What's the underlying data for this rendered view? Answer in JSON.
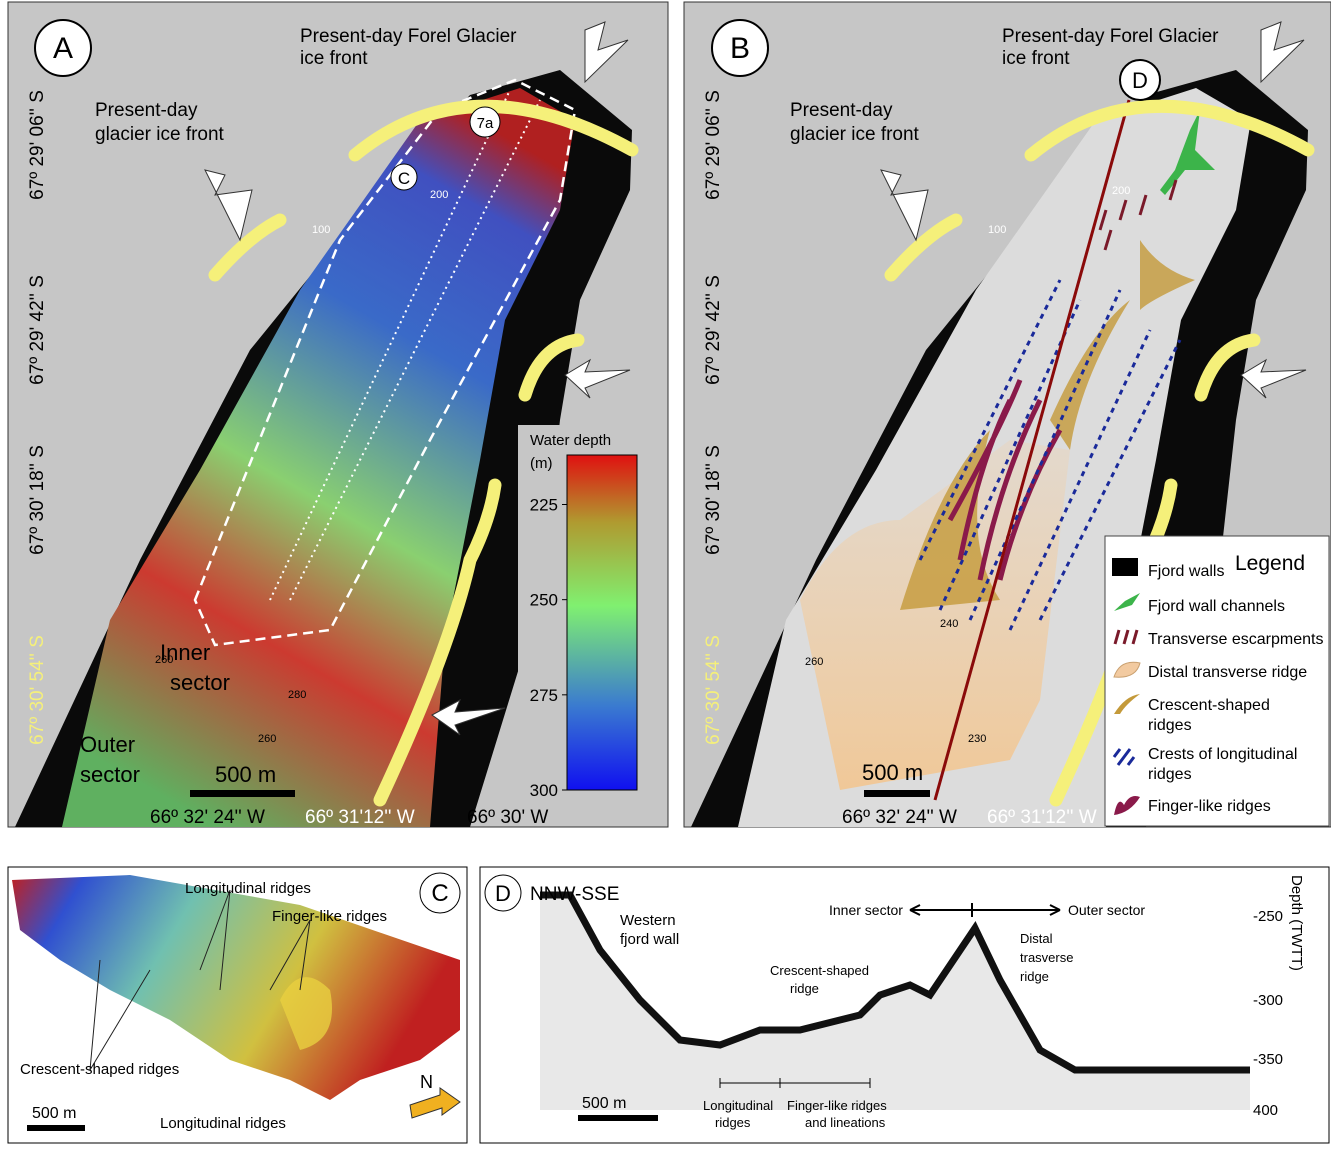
{
  "panel_a": {
    "label": "A",
    "forel_front": [
      "Present-day Forel Glacier",
      "ice front"
    ],
    "glacier_front": [
      "Present-day",
      "glacier ice front"
    ],
    "latitudes": [
      "67º 29' 06'' S",
      "67º 29' 42'' S",
      "67º 30' 18'' S",
      "67º 30' 54'' S"
    ],
    "longitudes": [
      "66º 32' 24'' W",
      "66º 31'12'' W",
      "66º 30' W"
    ],
    "markers": [
      "C",
      "7a"
    ],
    "contours": [
      "100",
      "200",
      "260",
      "280",
      "260"
    ],
    "inner_sector": [
      "Inner",
      "sector"
    ],
    "outer_sector": [
      "Outer",
      "sector"
    ],
    "scale_bar": "500 m",
    "colorbar": {
      "title": [
        "Water depth",
        "(m)"
      ],
      "ticks": [
        225,
        250,
        275,
        300
      ],
      "lim": [
        212,
        300
      ]
    }
  },
  "panel_b": {
    "label": "B",
    "marker": "D",
    "forel_front": [
      "Present-day Forel Glacier",
      "ice front"
    ],
    "glacier_front": [
      "Present-day",
      "glacier ice front"
    ],
    "latitudes": [
      "67º 29' 06'' S",
      "67º 29' 42'' S",
      "67º 30' 18'' S",
      "67º 30' 54'' S"
    ],
    "longitudes": [
      "66º 32' 24'' W",
      "66º 31'12'' W"
    ],
    "contours": [
      "100",
      "200",
      "240",
      "260",
      "230"
    ],
    "scale_bar": "500 m",
    "legend": {
      "title": "Legend",
      "items": [
        [
          "Fjord walls"
        ],
        [
          "Fjord wall channels"
        ],
        [
          "Transverse escarpments"
        ],
        [
          "Distal transverse ridge"
        ],
        [
          "Crescent-shaped",
          "ridges"
        ],
        [
          "Crests of longitudinal",
          "ridges"
        ],
        [
          "Finger-like ridges"
        ]
      ]
    }
  },
  "panel_c": {
    "label": "C",
    "annotations": [
      "Longitudinal ridges",
      "Finger-like ridges",
      "Crescent-shaped ridges",
      "Longitudinal ridges"
    ],
    "scale_bar": "500 m",
    "north": "N"
  },
  "panel_d": {
    "label": "D",
    "title": "NNW-SSE",
    "axis_title": "Depth (TWTT)",
    "depth_ticks": [
      "-250",
      "-300",
      "-350",
      "400"
    ],
    "inner_sector": "Inner sector",
    "outer_sector": "Outer sector",
    "western_wall": [
      "Western",
      "fjord wall"
    ],
    "crescent": [
      "Crescent-shaped",
      "ridge"
    ],
    "distal": [
      "Distal",
      "trasverse",
      "ridge"
    ],
    "longitudinal": [
      "Longitudinal",
      "ridges"
    ],
    "finger": [
      "Finger-like ridges",
      "and  lineations"
    ],
    "scale_bar": "500 m"
  }
}
